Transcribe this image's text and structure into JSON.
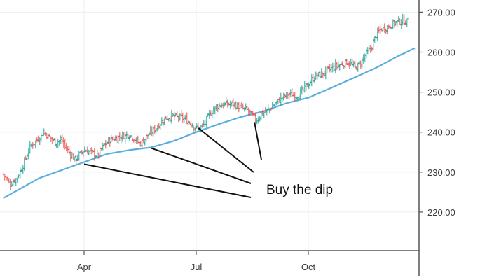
{
  "chart_data": {
    "type": "ohlc",
    "title": "",
    "xlabel": "",
    "ylabel": "",
    "ylim": [
      210.5,
      273.0
    ],
    "y_ticks": [
      {
        "value": 270,
        "label": "270.00"
      },
      {
        "value": 260,
        "label": "260.00"
      },
      {
        "value": 250,
        "label": "250.00"
      },
      {
        "value": 240,
        "label": "240.00"
      },
      {
        "value": 230,
        "label": "230.00"
      },
      {
        "value": 220,
        "label": "220.00"
      }
    ],
    "x_ticks": [
      {
        "day": 80,
        "label": "Apr"
      },
      {
        "day": 180,
        "label": "Jul"
      },
      {
        "day": 280,
        "label": "Oct"
      }
    ],
    "x_range_days": [
      8,
      375
    ],
    "grid": true,
    "price_axis_position": "right",
    "colors": {
      "up": "#26a69a",
      "down": "#ef5350",
      "moving_average": "#5aaee0",
      "grid": "#e8eef2",
      "axis": "#555555",
      "annotation": "#111111"
    },
    "price_path": [
      [
        8,
        229.5
      ],
      [
        14,
        227.0
      ],
      [
        20,
        228.5
      ],
      [
        26,
        232.0
      ],
      [
        32,
        236.5
      ],
      [
        38,
        238.0
      ],
      [
        44,
        240.0
      ],
      [
        48,
        239.0
      ],
      [
        54,
        237.5
      ],
      [
        60,
        238.0
      ],
      [
        64,
        236.0
      ],
      [
        68,
        234.5
      ],
      [
        72,
        233.0
      ],
      [
        76,
        234.5
      ],
      [
        80,
        235.5
      ],
      [
        86,
        235.0
      ],
      [
        92,
        234.0
      ],
      [
        96,
        236.0
      ],
      [
        102,
        238.0
      ],
      [
        108,
        238.5
      ],
      [
        114,
        239.0
      ],
      [
        120,
        239.5
      ],
      [
        126,
        238.0
      ],
      [
        130,
        237.0
      ],
      [
        136,
        239.0
      ],
      [
        144,
        241.0
      ],
      [
        152,
        243.5
      ],
      [
        160,
        244.0
      ],
      [
        168,
        243.5
      ],
      [
        174,
        242.5
      ],
      [
        178,
        241.5
      ],
      [
        182,
        241.0
      ],
      [
        186,
        241.5
      ],
      [
        192,
        244.5
      ],
      [
        198,
        246.5
      ],
      [
        206,
        247.0
      ],
      [
        214,
        247.0
      ],
      [
        220,
        246.0
      ],
      [
        226,
        245.5
      ],
      [
        230,
        244.0
      ],
      [
        234,
        243.0
      ],
      [
        238,
        244.5
      ],
      [
        244,
        245.5
      ],
      [
        250,
        247.0
      ],
      [
        256,
        248.5
      ],
      [
        262,
        249.5
      ],
      [
        268,
        249.0
      ],
      [
        274,
        250.0
      ],
      [
        280,
        252.0
      ],
      [
        286,
        254.0
      ],
      [
        292,
        254.5
      ],
      [
        298,
        255.5
      ],
      [
        304,
        256.5
      ],
      [
        310,
        257.0
      ],
      [
        314,
        257.5
      ],
      [
        318,
        257.0
      ],
      [
        322,
        256.0
      ],
      [
        326,
        257.0
      ],
      [
        330,
        259.0
      ],
      [
        336,
        261.0
      ],
      [
        340,
        264.0
      ],
      [
        344,
        265.5
      ],
      [
        348,
        266.0
      ],
      [
        352,
        266.5
      ],
      [
        358,
        267.5
      ],
      [
        364,
        267.8
      ],
      [
        368,
        267.6
      ]
    ],
    "moving_average": [
      [
        8,
        223.5
      ],
      [
        40,
        228.5
      ],
      [
        80,
        232.5
      ],
      [
        100,
        234.5
      ],
      [
        120,
        235.5
      ],
      [
        140,
        236.2
      ],
      [
        160,
        237.8
      ],
      [
        180,
        240.0
      ],
      [
        200,
        242.0
      ],
      [
        220,
        243.8
      ],
      [
        240,
        245.2
      ],
      [
        260,
        247.2
      ],
      [
        280,
        248.6
      ],
      [
        300,
        251.0
      ],
      [
        320,
        253.5
      ],
      [
        340,
        256.0
      ],
      [
        360,
        259.0
      ],
      [
        375,
        261.0
      ]
    ],
    "annotations": [
      {
        "text": "Buy the dip",
        "points": [
          [
            80,
            232.0
          ],
          [
            140,
            236.0
          ],
          [
            182,
            241.0
          ],
          [
            232,
            242.5
          ]
        ]
      }
    ]
  }
}
